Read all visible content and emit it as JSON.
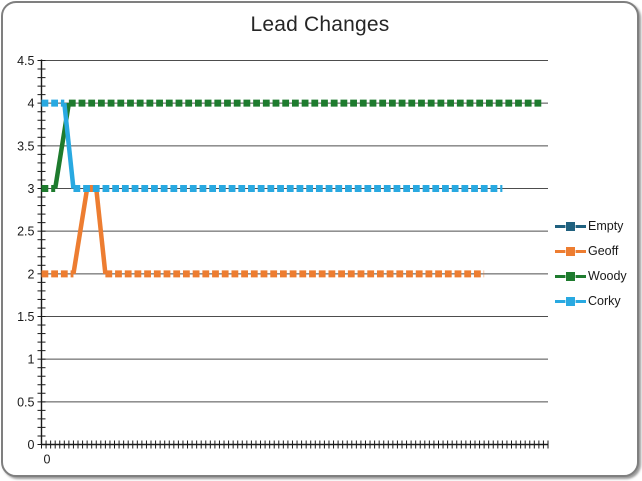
{
  "chart_data": {
    "type": "line",
    "title": "Lead Changes",
    "xlabel": "",
    "ylabel": "",
    "xlim": [
      0,
      111
    ],
    "ylim": [
      0,
      4.5
    ],
    "ytick_labels": [
      "0",
      "0.5",
      "1",
      "1.5",
      "2",
      "2.5",
      "3",
      "3.5",
      "4",
      "4.5"
    ],
    "ytick_values": [
      0,
      0.5,
      1,
      1.5,
      2,
      2.5,
      3,
      3.5,
      4,
      4.5
    ],
    "y_minor_tick_step": 0.1,
    "x_minor_tick_count": 111,
    "xtick_labels": [
      "0"
    ],
    "xtick_values": [
      0
    ],
    "grid": "horizontal-major",
    "legend_position": "right",
    "line_style": "square-dash-with-solid-transitions",
    "series": [
      {
        "name": "Empty",
        "color": "#20617F",
        "points": []
      },
      {
        "name": "Geoff",
        "color": "#ED7D31",
        "points": [
          [
            0,
            2
          ],
          [
            7,
            2
          ],
          [
            10,
            3
          ],
          [
            12,
            3
          ],
          [
            14,
            2
          ],
          [
            97,
            2
          ]
        ]
      },
      {
        "name": "Woody",
        "color": "#1E7B2E",
        "points": [
          [
            0,
            3
          ],
          [
            3,
            3
          ],
          [
            6,
            4
          ],
          [
            110,
            4
          ]
        ]
      },
      {
        "name": "Corky",
        "color": "#29A9E1",
        "points": [
          [
            0,
            4
          ],
          [
            5,
            4
          ],
          [
            7,
            3
          ],
          [
            101,
            3
          ]
        ]
      }
    ],
    "colors": {
      "grid": "#4d4d4d",
      "axis": "#1a1a1a",
      "tick": "#1a1a1a",
      "label": "#1a1a1a",
      "title": "#262626"
    }
  }
}
